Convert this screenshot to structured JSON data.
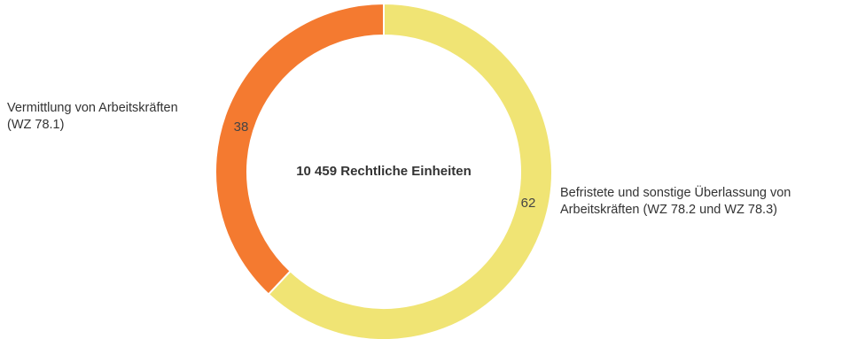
{
  "chart_data": {
    "type": "pie",
    "center_text": "10 459 Rechtliche Einheiten",
    "start_direction": "top",
    "categories": [
      "Befristete und sonstige Überlassung von Arbeitskräften (WZ 78.2 und WZ 78.3)",
      "Vermittlung von Arbeitskräften (WZ 78.1)"
    ],
    "values": [
      62,
      38
    ],
    "colors": [
      "#F0E474",
      "#F47A30"
    ],
    "value_labels": [
      "62",
      "38"
    ]
  },
  "labels": {
    "left_line1": "Vermittlung von Arbeitskräften",
    "left_line2": "(WZ 78.1)",
    "right_line1": "Befristete und sonstige Überlassung von",
    "right_line2": "Arbeitskräften (WZ 78.2 und WZ 78.3)"
  }
}
